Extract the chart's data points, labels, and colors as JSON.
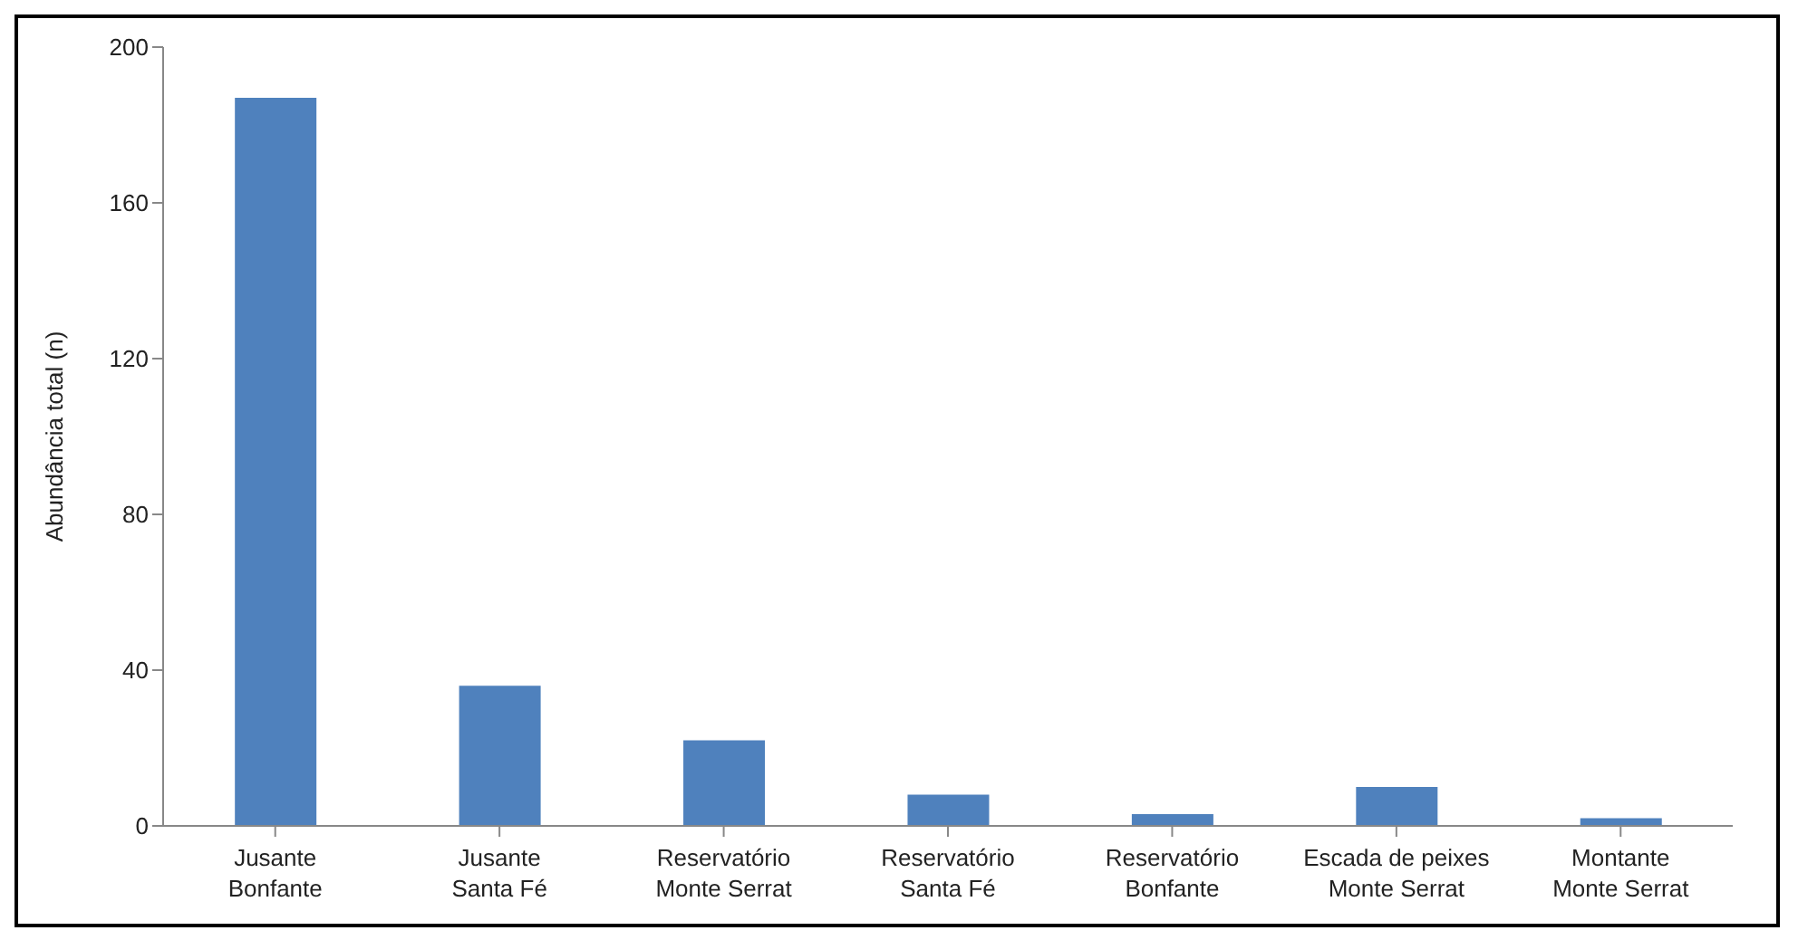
{
  "chart_data": {
    "type": "bar",
    "ylabel": "Abundância total (n)",
    "categories": [
      "Jusante\nBonfante",
      "Jusante\nSanta Fé",
      "Reservatório\nMonte Serrat",
      "Reservatório\nSanta Fé",
      "Reservatório\nBonfante",
      "Escada de peixes\nMonte Serrat",
      "Montante\nMonte Serrat"
    ],
    "values": [
      187,
      36,
      22,
      8,
      3,
      10,
      2
    ],
    "color": "#4f81bd",
    "ylim": [
      0,
      200
    ],
    "yticks": [
      0,
      40,
      80,
      120,
      160,
      200
    ],
    "grid": false,
    "legend": false
  }
}
